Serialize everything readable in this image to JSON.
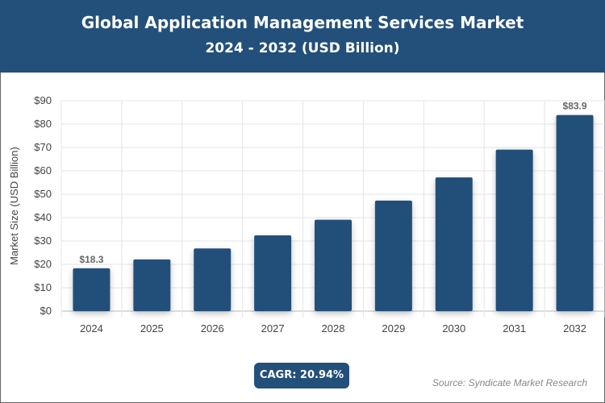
{
  "header": {
    "title": "Global Application Management Services Market",
    "subtitle": "2024 - 2032 (USD Billion)"
  },
  "chart_data": {
    "type": "bar",
    "title": "Global Application Management Services Market",
    "subtitle": "2024 - 2032 (USD Billion)",
    "categories": [
      "2024",
      "2025",
      "2026",
      "2027",
      "2028",
      "2029",
      "2030",
      "2031",
      "2032"
    ],
    "values": [
      18.3,
      22.1,
      26.8,
      32.4,
      39.1,
      47.3,
      57.2,
      69.1,
      83.9
    ],
    "data_labels": {
      "0": "$18.3",
      "8": "$83.9"
    },
    "xlabel": "",
    "ylabel": "Market Size (USD Billion)",
    "ylim": [
      0,
      90
    ],
    "yticks": [
      "$0",
      "$10",
      "$20",
      "$30",
      "$40",
      "$50",
      "$60",
      "$70",
      "$80",
      "$90"
    ],
    "grid": true,
    "bar_color": "#23507a"
  },
  "footer": {
    "cagr": "CAGR: 20.94%",
    "source": "Source: Syndicate Market Research"
  }
}
